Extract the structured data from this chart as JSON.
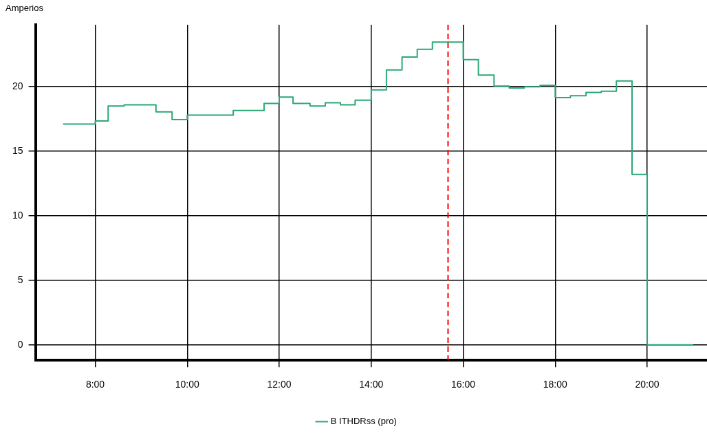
{
  "chart_data": {
    "type": "step",
    "ylabel": "Amperios",
    "x": [
      7.3,
      8.0,
      8.28,
      8.63,
      9.32,
      9.67,
      10.0,
      11.0,
      11.67,
      12.0,
      12.3,
      12.67,
      13.0,
      13.33,
      13.65,
      14.0,
      14.33,
      14.67,
      15.0,
      15.33,
      16.0,
      16.33,
      16.67,
      17.0,
      17.33,
      17.67,
      18.0,
      18.33,
      18.67,
      19.0,
      19.33,
      19.67,
      20.0,
      21.0
    ],
    "series": [
      {
        "name": "B ITHDRss (pro)",
        "color": "#2aa876",
        "values": [
          17.1,
          17.35,
          18.5,
          18.6,
          18.05,
          17.45,
          17.8,
          18.15,
          18.7,
          19.2,
          18.7,
          18.5,
          18.75,
          18.6,
          18.95,
          19.75,
          21.3,
          22.3,
          22.9,
          23.45,
          22.1,
          20.9,
          20.05,
          19.9,
          20.0,
          20.1,
          19.15,
          19.3,
          19.55,
          19.65,
          20.45,
          13.2,
          0.0,
          0.0
        ]
      }
    ],
    "xlim": [
      6.7,
      21.3
    ],
    "xticks": [
      {
        "value": 8,
        "label": "8:00"
      },
      {
        "value": 10,
        "label": "10:00"
      },
      {
        "value": 12,
        "label": "12:00"
      },
      {
        "value": 14,
        "label": "14:00"
      },
      {
        "value": 16,
        "label": "16:00"
      },
      {
        "value": 18,
        "label": "18:00"
      },
      {
        "value": 20,
        "label": "20:00"
      }
    ],
    "ylim": [
      -1.2,
      24.8
    ],
    "yticks": [
      0,
      5,
      10,
      15,
      20
    ],
    "ref_lines": [
      {
        "axis": "x",
        "value": 15.67,
        "color": "#ff0000",
        "line_style": "dashed"
      }
    ],
    "grid": true,
    "legend": "bottom",
    "marker": "none",
    "line_style": "solid"
  }
}
